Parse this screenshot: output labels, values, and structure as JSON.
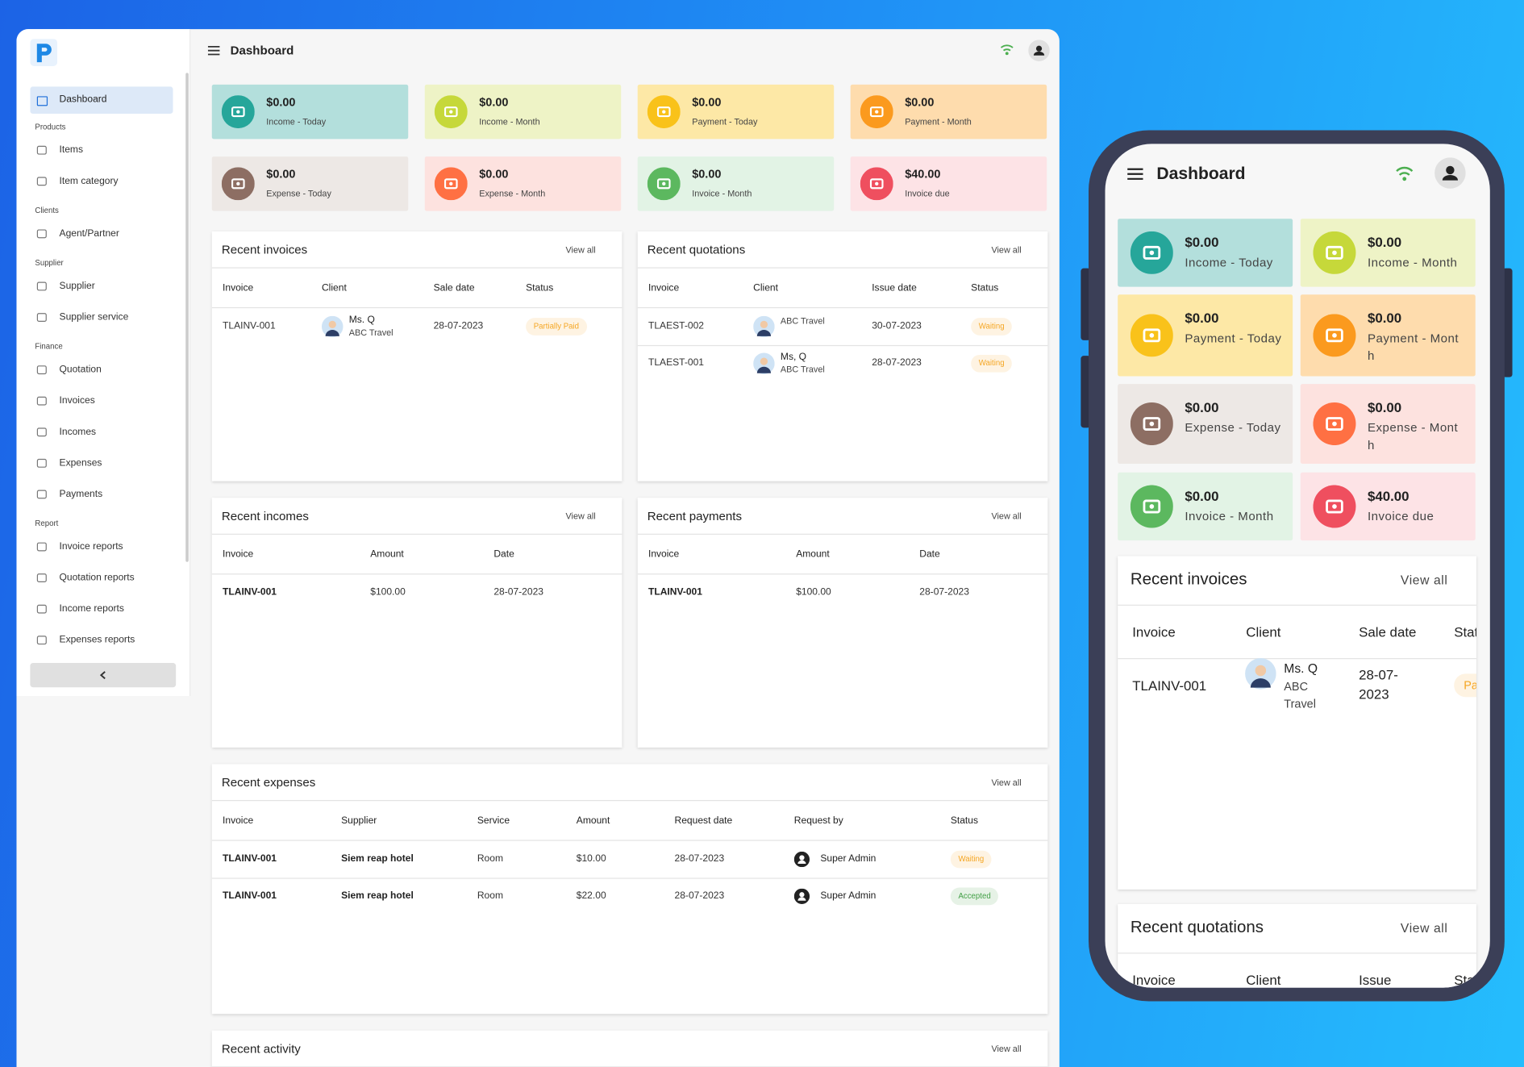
{
  "sidebar": {
    "home": "Dashboard",
    "groups": [
      {
        "title": "Products",
        "items": [
          "Items",
          "Item category"
        ]
      },
      {
        "title": "Clients",
        "items": [
          "Agent/Partner"
        ]
      },
      {
        "title": "Supplier",
        "items": [
          "Supplier",
          "Supplier service"
        ]
      },
      {
        "title": "Finance",
        "items": [
          "Quotation",
          "Invoices",
          "Incomes",
          "Expenses",
          "Payments"
        ]
      },
      {
        "title": "Report",
        "items": [
          "Invoice reports",
          "Quotation reports",
          "Income reports",
          "Expenses reports"
        ]
      }
    ]
  },
  "header": {
    "title": "Dashboard"
  },
  "cards": [
    {
      "amount": "$0.00",
      "label": "Income - Today"
    },
    {
      "amount": "$0.00",
      "label": "Income - Month"
    },
    {
      "amount": "$0.00",
      "label": "Payment - Today"
    },
    {
      "amount": "$0.00",
      "label": "Payment - Month"
    },
    {
      "amount": "$0.00",
      "label": "Expense - Today"
    },
    {
      "amount": "$0.00",
      "label": "Expense - Month"
    },
    {
      "amount": "$0.00",
      "label": "Invoice - Month"
    },
    {
      "amount": "$40.00",
      "label": "Invoice due"
    }
  ],
  "panels": {
    "invoices": {
      "title": "Recent invoices",
      "link": "View all",
      "columns": [
        "Invoice",
        "Client",
        "Sale date",
        "Status"
      ],
      "rows": [
        [
          "TLAINV-001",
          {
            "name": "Ms. Q",
            "company": "ABC Travel"
          },
          "28-07-2023",
          {
            "badge": "Partially Paid",
            "color": "#f5a623"
          }
        ]
      ]
    },
    "quotations": {
      "title": "Recent quotations",
      "link": "View all",
      "columns": [
        "Invoice",
        "Client",
        "Issue date",
        "Status"
      ],
      "rows": [
        [
          "TLAEST-002",
          {
            "company": "ABC Travel"
          },
          "30-07-2023",
          {
            "badge": "Waiting",
            "color": "#f5a623"
          }
        ],
        [
          "TLAEST-001",
          {
            "name": "Ms, Q",
            "company": "ABC Travel"
          },
          "28-07-2023",
          {
            "badge": "Waiting",
            "color": "#f5a623"
          }
        ]
      ]
    },
    "incomes": {
      "title": "Recent incomes",
      "link": "View all",
      "columns": [
        "Invoice",
        "Amount",
        "Date"
      ],
      "rows": [
        [
          {
            "strong": "TLAINV-001"
          },
          "$100.00",
          "28-07-2023"
        ]
      ]
    },
    "payments": {
      "title": "Recent payments",
      "link": "View all",
      "columns": [
        "Invoice",
        "Amount",
        "Date"
      ],
      "rows": [
        [
          {
            "strong": "TLAINV-001"
          },
          "$100.00",
          "28-07-2023"
        ]
      ]
    },
    "expenses": {
      "title": "Recent expenses",
      "link": "View all",
      "columns": [
        "Invoice",
        "Supplier",
        "Service",
        "Amount",
        "Request date",
        "Request by",
        "Status"
      ],
      "rows": [
        [
          {
            "strong": "TLAINV-001"
          },
          {
            "strong": "Siem reap hotel"
          },
          "Room",
          "$10.00",
          "28-07-2023",
          {
            "user": "Super Admin"
          },
          {
            "badge": "Waiting",
            "color": "#f5a623"
          }
        ],
        [
          {
            "strong": "TLAINV-001"
          },
          {
            "strong": "Siem reap hotel"
          },
          "Room",
          "$22.00",
          "28-07-2023",
          {
            "user": "Super Admin"
          },
          {
            "badge": "Accepted",
            "color": "#43a047"
          }
        ]
      ]
    },
    "activity": {
      "title": "Recent activity",
      "link": "View all"
    }
  }
}
